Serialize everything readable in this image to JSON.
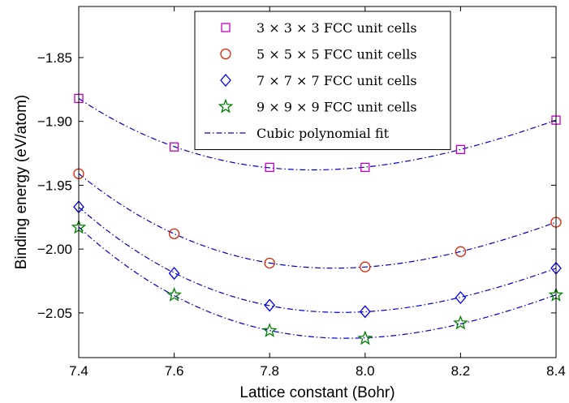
{
  "chart_data": {
    "type": "scatter",
    "xlabel": "Lattice constant (Bohr)",
    "ylabel": "Binding energy (eV/atom)",
    "xlim": [
      7.4,
      8.4
    ],
    "ylim": [
      -2.085,
      -1.81
    ],
    "x_ticks": [
      "7.4",
      "7.6",
      "7.8",
      "8.0",
      "8.2",
      "8.4"
    ],
    "y_ticks": [
      "-1.85",
      "-1.90",
      "-1.95",
      "-2.00",
      "-2.05"
    ],
    "grid": false,
    "legend_position": "top-right",
    "x": [
      7.4,
      7.6,
      7.8,
      8.0,
      8.2,
      8.4
    ],
    "series": [
      {
        "name": "3 × 3 × 3 FCC unit cells",
        "marker": "square",
        "color": "#BF00BF",
        "values": [
          -1.882,
          -1.92,
          -1.936,
          -1.936,
          -1.922,
          -1.899
        ]
      },
      {
        "name": "5 × 5 × 5 FCC unit cells",
        "marker": "circle",
        "color": "#DD2200",
        "values": [
          -1.941,
          -1.988,
          -2.011,
          -2.014,
          -2.002,
          -1.979
        ]
      },
      {
        "name": "7 × 7 × 7 FCC unit cells",
        "marker": "diamond",
        "color": "#0000EE",
        "values": [
          -1.967,
          -2.019,
          -2.044,
          -2.049,
          -2.038,
          -2.015
        ]
      },
      {
        "name": "9 × 9 × 9 FCC unit cells",
        "marker": "star",
        "color": "#008000",
        "values": [
          -1.983,
          -2.036,
          -2.064,
          -2.07,
          -2.058,
          -2.036
        ]
      }
    ],
    "fit": {
      "name": "Cubic polynomial fit",
      "color": "#0000CC",
      "style": "dash-dot"
    }
  }
}
